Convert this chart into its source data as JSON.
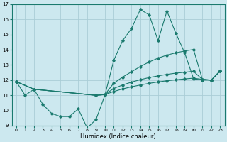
{
  "xlabel": "Humidex (Indice chaleur)",
  "bg_color": "#cce8ef",
  "grid_color": "#aacdd6",
  "line_color": "#1a7a6e",
  "xlim": [
    -0.5,
    23.5
  ],
  "ylim": [
    9,
    17
  ],
  "yticks": [
    9,
    10,
    11,
    12,
    13,
    14,
    15,
    16,
    17
  ],
  "xticks": [
    0,
    1,
    2,
    3,
    4,
    5,
    6,
    7,
    8,
    9,
    10,
    11,
    12,
    13,
    14,
    15,
    16,
    17,
    18,
    19,
    20,
    21,
    22,
    23
  ],
  "jagged_x": [
    0,
    1,
    2,
    3,
    4,
    5,
    6,
    7,
    8,
    9,
    10,
    11,
    12,
    13,
    14,
    15,
    16,
    17,
    18,
    19,
    20,
    21,
    22,
    23
  ],
  "jagged_y": [
    11.9,
    11.0,
    11.4,
    10.4,
    9.8,
    9.6,
    9.6,
    10.1,
    8.85,
    9.4,
    11.0,
    13.3,
    14.6,
    15.4,
    16.65,
    16.3,
    14.6,
    16.55,
    15.1,
    13.8,
    12.1,
    12.0,
    12.0,
    12.6
  ],
  "upper_x": [
    0,
    2,
    9,
    10,
    11,
    12,
    13,
    14,
    15,
    16,
    17,
    18,
    19,
    20,
    21,
    22,
    23
  ],
  "upper_y": [
    11.9,
    11.4,
    11.0,
    11.05,
    11.8,
    12.2,
    12.55,
    12.9,
    13.2,
    13.45,
    13.65,
    13.8,
    13.92,
    14.02,
    12.05,
    12.0,
    12.6
  ],
  "mid_x": [
    0,
    2,
    9,
    10,
    11,
    12,
    13,
    14,
    15,
    16,
    17,
    18,
    19,
    20,
    21,
    22,
    23
  ],
  "mid_y": [
    11.9,
    11.4,
    11.0,
    11.05,
    11.45,
    11.68,
    11.87,
    12.03,
    12.17,
    12.28,
    12.38,
    12.46,
    12.52,
    12.58,
    12.05,
    12.0,
    12.6
  ],
  "lower_x": [
    0,
    2,
    9,
    10,
    11,
    12,
    13,
    14,
    15,
    16,
    17,
    18,
    19,
    20,
    21,
    22,
    23
  ],
  "lower_y": [
    11.9,
    11.4,
    11.0,
    11.05,
    11.25,
    11.42,
    11.56,
    11.68,
    11.79,
    11.88,
    11.96,
    12.02,
    12.08,
    12.13,
    12.05,
    12.0,
    12.6
  ]
}
